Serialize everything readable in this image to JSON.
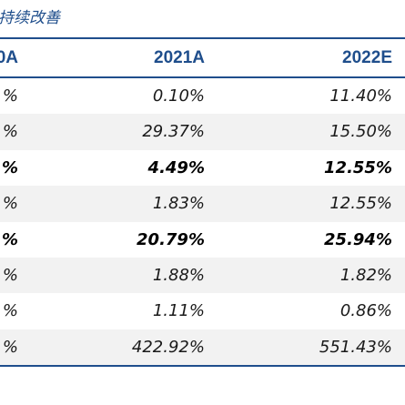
{
  "caption": "持续改善",
  "header": {
    "col0": "0A",
    "col1": "2021A",
    "col2": "2022E"
  },
  "rows": [
    {
      "c0": "%",
      "c1": "0.10%",
      "c2": "11.40%",
      "shaded": false,
      "bold": false
    },
    {
      "c0": "%",
      "c1": "29.37%",
      "c2": "15.50%",
      "shaded": true,
      "bold": false
    },
    {
      "c0": "%",
      "c1": "4.49%",
      "c2": "12.55%",
      "shaded": false,
      "bold": true
    },
    {
      "c0": "%",
      "c1": "1.83%",
      "c2": "12.55%",
      "shaded": true,
      "bold": false
    },
    {
      "c0": "%",
      "c1": "20.79%",
      "c2": "25.94%",
      "shaded": false,
      "bold": true
    },
    {
      "c0": "%",
      "c1": "1.88%",
      "c2": "1.82%",
      "shaded": true,
      "bold": false
    },
    {
      "c0": "%",
      "c1": "1.11%",
      "c2": "0.86%",
      "shaded": false,
      "bold": false
    },
    {
      "c0": "%",
      "c1": "422.92%",
      "c2": "551.43%",
      "shaded": true,
      "bold": false
    }
  ]
}
